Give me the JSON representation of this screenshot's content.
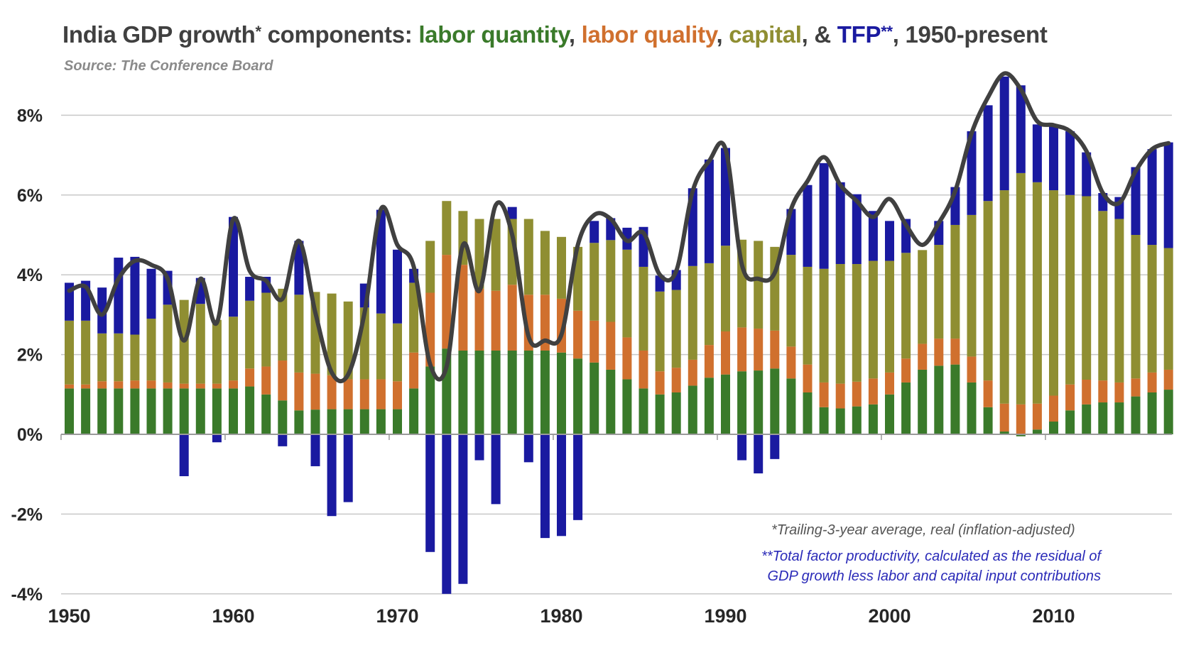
{
  "title": {
    "prefix": "India GDP growth",
    "star1": "*",
    "mid": " components: ",
    "labor_quantity": "labor quantity",
    "sep1": ", ",
    "labor_quality": "labor quality",
    "sep2": ", ",
    "capital": "capital",
    "sep3": ", & ",
    "tfp": "TFP",
    "star2": "**",
    "suffix": ", 1950-present"
  },
  "subtitle": "Source: The Conference Board",
  "notes": {
    "note1": "*Trailing-3-year average,  real (inflation-adjusted)",
    "note2_line1": "**Total factor productivity, calculated as the residual of",
    "note2_line2": "GDP growth less labor and capital input contributions"
  },
  "colors": {
    "labor_quantity": "#3a7a2a",
    "labor_quality": "#d0702e",
    "capital": "#8f8e32",
    "tfp": "#1a1aa0",
    "gdp_line": "#404040",
    "grid": "#c8c8c8"
  },
  "chart_data": {
    "type": "bar",
    "stacked": true,
    "x": [
      1950,
      1951,
      1952,
      1953,
      1954,
      1955,
      1956,
      1957,
      1958,
      1959,
      1960,
      1961,
      1962,
      1963,
      1964,
      1965,
      1966,
      1967,
      1968,
      1969,
      1970,
      1971,
      1972,
      1973,
      1974,
      1975,
      1976,
      1977,
      1978,
      1979,
      1980,
      1981,
      1982,
      1983,
      1984,
      1985,
      1986,
      1987,
      1988,
      1989,
      1990,
      1991,
      1992,
      1993,
      1994,
      1995,
      1996,
      1997,
      1998,
      1999,
      2000,
      2001,
      2002,
      2003,
      2004,
      2005,
      2006,
      2007,
      2008,
      2009,
      2010,
      2011,
      2012,
      2013,
      2014,
      2015,
      2016,
      2017
    ],
    "ylim": [
      -4,
      9
    ],
    "yticks": [
      "-4%",
      "-2%",
      "0%",
      "2%",
      "4%",
      "6%",
      "8%"
    ],
    "ytick_values": [
      -4,
      -2,
      0,
      2,
      4,
      6,
      8
    ],
    "xticks": [
      "1950",
      "1960",
      "1970",
      "1980",
      "1990",
      "2000",
      "2010"
    ],
    "xtick_values": [
      1950,
      1960,
      1970,
      1980,
      1990,
      2000,
      2010
    ],
    "series": [
      {
        "key": "labor_quantity",
        "values": [
          1.15,
          1.15,
          1.15,
          1.15,
          1.15,
          1.15,
          1.15,
          1.15,
          1.15,
          1.15,
          1.15,
          1.2,
          1.0,
          0.85,
          0.6,
          0.62,
          0.63,
          0.63,
          0.63,
          0.63,
          0.63,
          1.15,
          1.7,
          2.15,
          2.1,
          2.1,
          2.1,
          2.1,
          2.1,
          2.1,
          2.05,
          1.9,
          1.8,
          1.62,
          1.38,
          1.15,
          1.0,
          1.05,
          1.22,
          1.42,
          1.5,
          1.58,
          1.6,
          1.65,
          1.4,
          1.05,
          0.68,
          0.65,
          0.7,
          0.75,
          1.0,
          1.3,
          1.62,
          1.72,
          1.75,
          1.3,
          0.68,
          0.07,
          -0.05,
          0.12,
          0.32,
          0.6,
          0.75,
          0.8,
          0.8,
          0.95,
          1.05,
          1.12
        ]
      },
      {
        "key": "labor_quality",
        "values": [
          0.1,
          0.1,
          0.18,
          0.18,
          0.2,
          0.2,
          0.15,
          0.12,
          0.12,
          0.12,
          0.2,
          0.45,
          0.7,
          1.0,
          0.95,
          0.9,
          0.85,
          0.75,
          0.75,
          0.75,
          0.7,
          0.9,
          1.85,
          2.35,
          2.15,
          1.55,
          1.5,
          1.65,
          1.4,
          1.4,
          1.35,
          1.2,
          1.05,
          1.2,
          1.05,
          0.95,
          0.58,
          0.62,
          0.65,
          0.82,
          1.08,
          1.1,
          1.05,
          0.95,
          0.8,
          0.7,
          0.62,
          0.62,
          0.62,
          0.65,
          0.55,
          0.6,
          0.65,
          0.68,
          0.65,
          0.65,
          0.67,
          0.7,
          0.75,
          0.65,
          0.65,
          0.65,
          0.62,
          0.55,
          0.5,
          0.45,
          0.5,
          0.5
        ]
      },
      {
        "key": "capital",
        "values": [
          1.6,
          1.6,
          1.2,
          1.2,
          1.15,
          1.55,
          1.95,
          2.1,
          2.0,
          1.6,
          1.6,
          1.7,
          1.85,
          1.8,
          1.95,
          2.05,
          2.05,
          1.95,
          1.8,
          1.65,
          1.45,
          1.75,
          1.3,
          1.35,
          1.35,
          1.75,
          1.8,
          1.65,
          1.9,
          1.6,
          1.55,
          1.6,
          1.95,
          2.05,
          2.2,
          2.1,
          2.0,
          1.95,
          2.35,
          2.05,
          2.15,
          2.2,
          2.2,
          2.1,
          2.3,
          2.45,
          2.85,
          3.0,
          2.95,
          2.95,
          2.8,
          2.65,
          2.35,
          2.35,
          2.85,
          3.55,
          4.5,
          5.35,
          5.8,
          5.55,
          5.15,
          4.75,
          4.6,
          4.25,
          4.1,
          3.6,
          3.2,
          3.05
        ]
      },
      {
        "key": "tfp",
        "values": [
          0.95,
          1.0,
          1.15,
          1.9,
          1.95,
          1.25,
          0.85,
          -1.05,
          0.65,
          -0.2,
          2.5,
          0.6,
          0.4,
          -0.3,
          1.35,
          -0.8,
          -2.05,
          -1.7,
          0.6,
          2.6,
          1.85,
          0.35,
          -2.95,
          -4.0,
          -3.75,
          -0.65,
          -1.75,
          0.3,
          -0.7,
          -2.6,
          -2.55,
          -2.15,
          0.55,
          0.55,
          0.55,
          1.0,
          0.4,
          0.5,
          1.95,
          2.6,
          2.45,
          -0.65,
          -0.98,
          -0.62,
          1.15,
          2.05,
          2.65,
          2.05,
          1.75,
          1.25,
          1.0,
          0.85,
          0.0,
          0.6,
          0.95,
          2.1,
          2.4,
          2.85,
          2.2,
          1.45,
          1.6,
          1.6,
          1.1,
          0.45,
          0.55,
          1.7,
          2.4,
          2.65
        ]
      }
    ],
    "gdp_growth_line": {
      "label": "GDP growth (trailing-3-year average)",
      "values": [
        3.6,
        3.7,
        3.0,
        3.9,
        4.35,
        4.25,
        3.9,
        2.35,
        3.9,
        2.8,
        5.4,
        4.1,
        3.85,
        3.4,
        4.85,
        3.05,
        1.55,
        1.5,
        3.05,
        5.65,
        4.75,
        4.2,
        1.75,
        1.7,
        4.75,
        3.6,
        5.75,
        5.0,
        2.45,
        2.35,
        2.5,
        4.75,
        5.5,
        5.4,
        4.85,
        5.05,
        4.0,
        4.1,
        6.1,
        6.85,
        7.15,
        4.25,
        3.9,
        4.05,
        5.65,
        6.35,
        6.95,
        6.25,
        5.85,
        5.45,
        5.9,
        5.25,
        4.75,
        5.3,
        6.1,
        7.55,
        8.45,
        9.05,
        8.65,
        7.85,
        7.75,
        7.6,
        7.1,
        6.05,
        5.8,
        6.6,
        7.15,
        7.3
      ]
    }
  }
}
